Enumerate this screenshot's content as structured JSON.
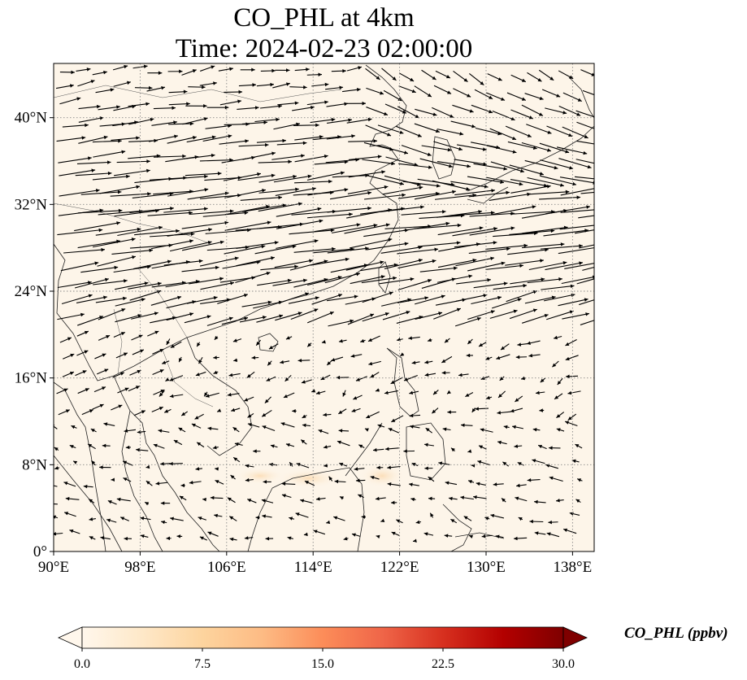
{
  "title": {
    "line1": "CO_PHL at 4km",
    "line2": "Time: 2024-02-23 02:00:00"
  },
  "map": {
    "lon_range": [
      90,
      140
    ],
    "lat_range": [
      0,
      45
    ],
    "lon_ticks": [
      {
        "value": 90,
        "label": "90°E"
      },
      {
        "value": 98,
        "label": "98°E"
      },
      {
        "value": 106,
        "label": "106°E"
      },
      {
        "value": 114,
        "label": "114°E"
      },
      {
        "value": 122,
        "label": "122°E"
      },
      {
        "value": 130,
        "label": "130°E"
      },
      {
        "value": 138,
        "label": "138°E"
      }
    ],
    "lat_ticks": [
      {
        "value": 0,
        "label": "0°"
      },
      {
        "value": 8,
        "label": "8°N"
      },
      {
        "value": 16,
        "label": "16°N"
      },
      {
        "value": 24,
        "label": "24°N"
      },
      {
        "value": 32,
        "label": "32°N"
      },
      {
        "value": 40,
        "label": "40°N"
      }
    ],
    "background_color": "#fdf5e9",
    "gridlines": "dotted",
    "vector_field": "wind arrows, strong westerlies north of ~20°N, weak easterlies to the south"
  },
  "colorbar": {
    "label": "CO_PHL (ppbv)",
    "colormap": "OrRd",
    "ticks": [
      "0.0",
      "7.5",
      "15.0",
      "22.5",
      "30.0"
    ],
    "range": [
      0,
      30
    ],
    "extend": "both"
  }
}
